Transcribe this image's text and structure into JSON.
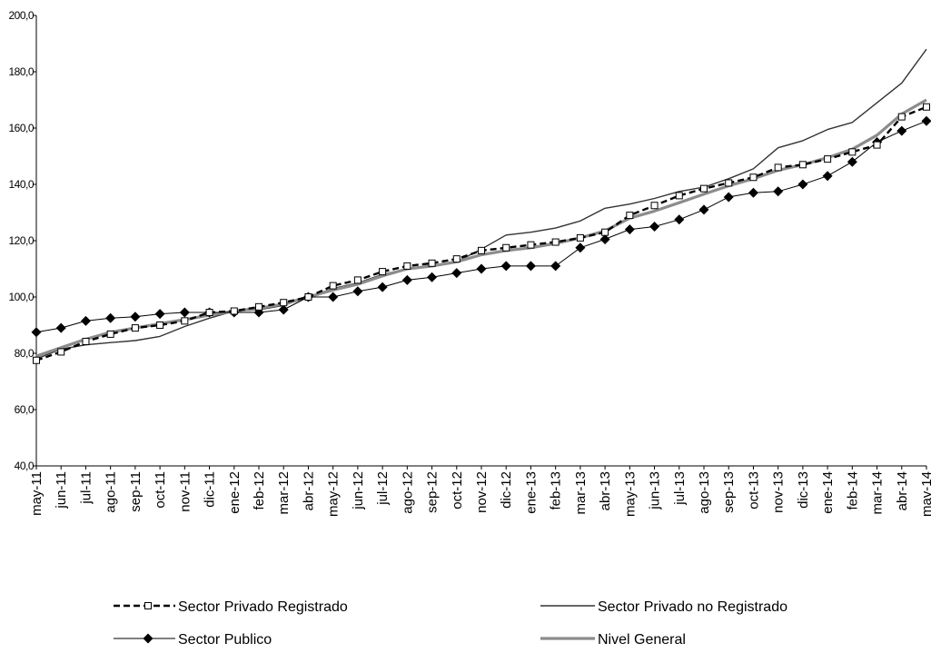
{
  "chart_data": {
    "type": "line",
    "categories": [
      "may-11",
      "jun-11",
      "jul-11",
      "ago-11",
      "sep-11",
      "oct-11",
      "nov-11",
      "dic-11",
      "ene-12",
      "feb-12",
      "mar-12",
      "abr-12",
      "may-12",
      "jun-12",
      "jul-12",
      "ago-12",
      "sep-12",
      "oct-12",
      "nov-12",
      "dic-12",
      "ene-13",
      "feb-13",
      "mar-13",
      "abr-13",
      "may-13",
      "jun-13",
      "jul-13",
      "ago-13",
      "sep-13",
      "oct-13",
      "nov-13",
      "dic-13",
      "ene-14",
      "feb-14",
      "mar-14",
      "abr-14",
      "may-14"
    ],
    "ylim": [
      40,
      200
    ],
    "yticks": [
      "40,0",
      "60,0",
      "80,0",
      "100,0",
      "120,0",
      "140,0",
      "160,0",
      "180,0",
      "200,0"
    ],
    "grid": false,
    "legend_position": "bottom",
    "series": [
      {
        "name": "Sector Privado Registrado",
        "color": "#000000",
        "style": "dashed-square-markers",
        "values": [
          77.5,
          80.5,
          84.2,
          86.8,
          89.0,
          90.0,
          91.5,
          94.5,
          95.0,
          96.5,
          98.0,
          100.0,
          104.0,
          106.0,
          109.0,
          111.0,
          112.0,
          113.5,
          116.5,
          117.5,
          118.5,
          119.5,
          121.0,
          123.0,
          129.0,
          132.5,
          136.0,
          138.5,
          140.5,
          142.5,
          146.0,
          147.0,
          149.0,
          151.5,
          154.0,
          164.0,
          167.5
        ]
      },
      {
        "name": "Sector Privado no Registrado",
        "color": "#333333",
        "style": "solid-thin",
        "values": [
          78.0,
          81.5,
          83.0,
          83.8,
          84.5,
          86.0,
          89.5,
          92.5,
          95.0,
          95.5,
          97.0,
          100.0,
          103.0,
          105.0,
          108.0,
          110.0,
          111.0,
          112.5,
          117.0,
          122.0,
          123.0,
          124.5,
          127.0,
          131.5,
          133.0,
          135.0,
          137.5,
          139.0,
          142.0,
          145.5,
          153.0,
          155.5,
          159.5,
          162.0,
          169.0,
          176.0,
          188.0
        ]
      },
      {
        "name": "Sector Publico",
        "color": "#000000",
        "style": "solid-diamond-markers",
        "values": [
          87.5,
          89.0,
          91.5,
          92.5,
          93.0,
          94.0,
          94.5,
          94.5,
          94.5,
          94.5,
          95.5,
          100.0,
          100.0,
          102.0,
          103.5,
          106.0,
          107.0,
          108.5,
          110.0,
          111.0,
          111.0,
          111.0,
          117.5,
          120.5,
          124.0,
          125.0,
          127.5,
          131.0,
          135.5,
          137.0,
          137.5,
          140.0,
          143.0,
          148.0,
          155.0,
          159.0,
          162.5
        ]
      },
      {
        "name": "Nivel General",
        "color": "#8c8c8c",
        "style": "solid-thick-gray",
        "values": [
          79.0,
          82.0,
          85.0,
          87.5,
          89.0,
          90.5,
          92.0,
          93.5,
          95.0,
          96.0,
          97.5,
          100.0,
          102.5,
          104.5,
          107.5,
          110.0,
          111.0,
          112.5,
          115.0,
          116.5,
          117.5,
          119.0,
          121.0,
          123.5,
          128.0,
          130.5,
          133.5,
          136.5,
          139.5,
          142.0,
          145.0,
          147.0,
          149.5,
          152.5,
          157.5,
          165.0,
          170.0
        ]
      }
    ]
  }
}
